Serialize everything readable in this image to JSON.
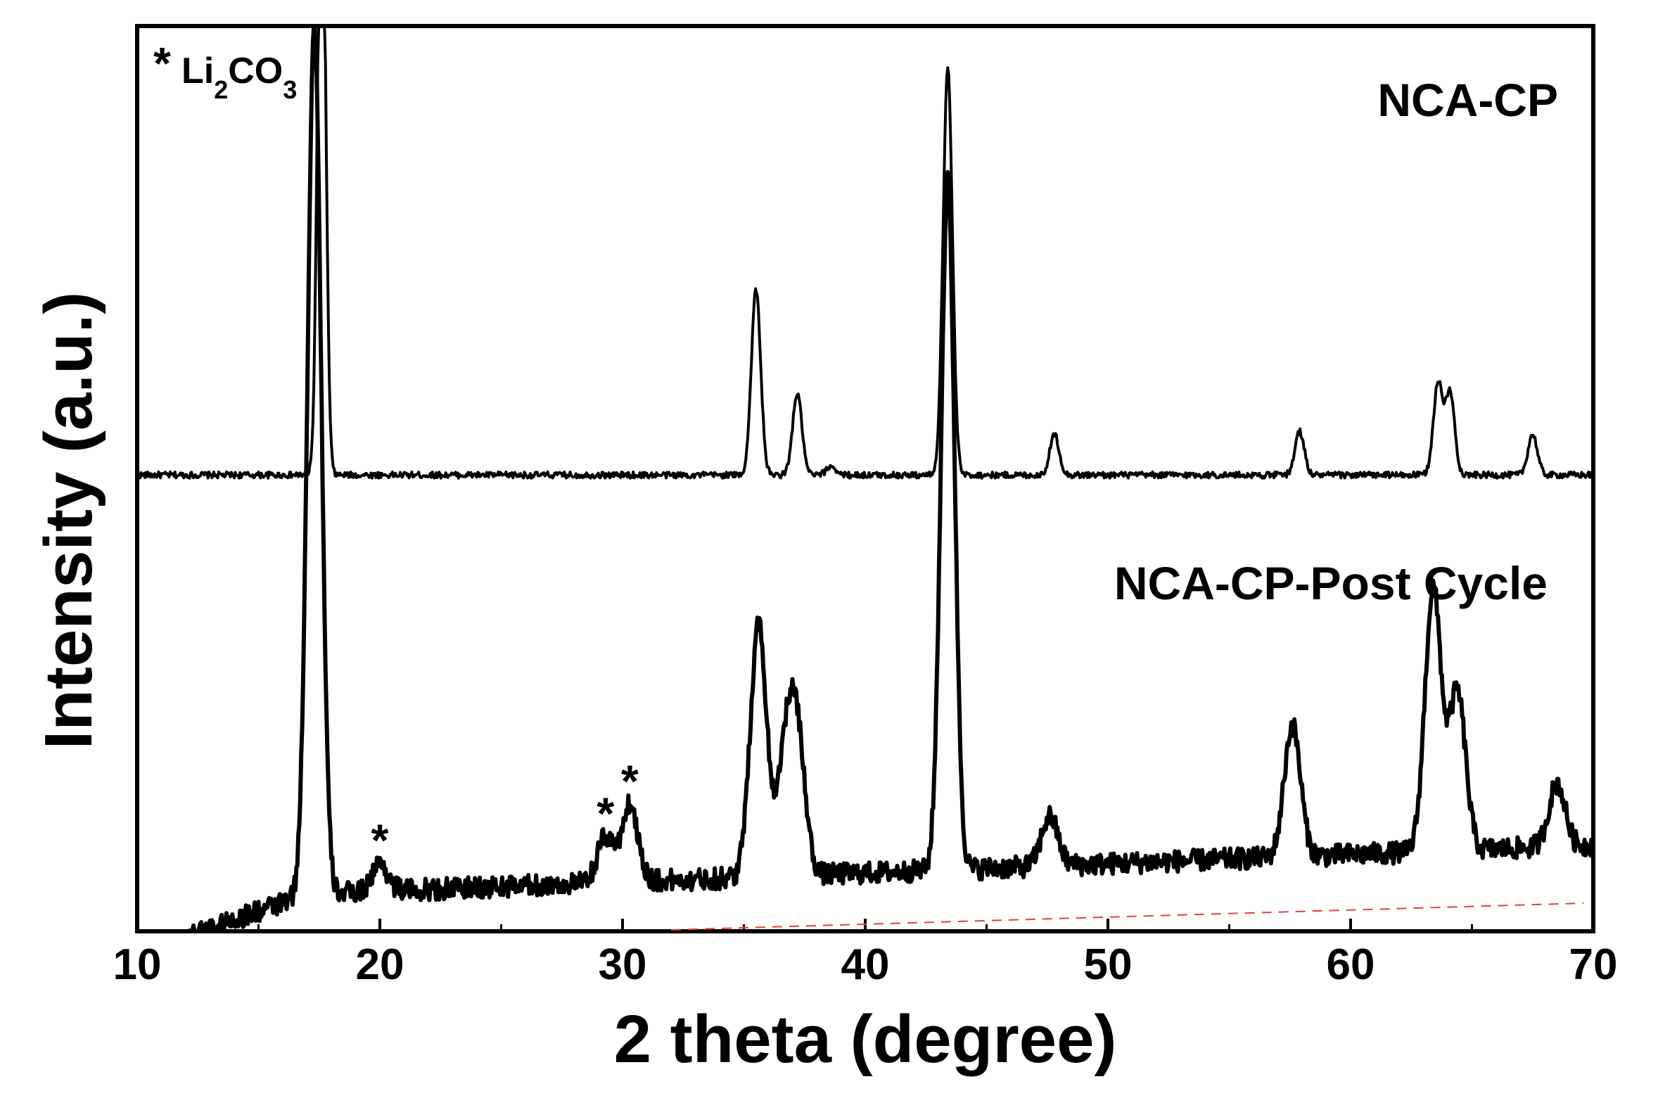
{
  "chart_data": {
    "type": "line",
    "xlabel": "2 theta (degree)",
    "ylabel": "Intensity (a.u.)",
    "xlim": [
      10,
      70
    ],
    "ylim": [
      0,
      100
    ],
    "x_ticks": [
      10,
      20,
      30,
      40,
      50,
      60,
      70
    ],
    "y_ticks_shown": false,
    "grid": false,
    "legend": {
      "marker": "*",
      "text": "Li",
      "sub1": "2",
      "text2": "CO",
      "sub2": "3",
      "placement": "top-left"
    },
    "series": [
      {
        "name": "NCA-CP",
        "color": "#000000",
        "baseline": 50.4,
        "peaks": [
          {
            "x": 17.6,
            "h": 75.5
          },
          {
            "x": 35.5,
            "h": 20.5
          },
          {
            "x": 37.2,
            "h": 9.0
          },
          {
            "x": 38.6,
            "h": 1.0
          },
          {
            "x": 43.4,
            "h": 45.0
          },
          {
            "x": 47.8,
            "h": 4.5
          },
          {
            "x": 57.9,
            "h": 4.8
          },
          {
            "x": 63.6,
            "h": 10.0
          },
          {
            "x": 64.1,
            "h": 9.0
          },
          {
            "x": 67.5,
            "h": 4.5
          }
        ]
      },
      {
        "name": "NCA-CP-Post Cycle",
        "color": "#000000",
        "baseline": 4.0,
        "peaks": [
          {
            "x": 17.3,
            "h": 96.0
          },
          {
            "x": 20.0,
            "h": 3.0
          },
          {
            "x": 29.3,
            "h": 5.0
          },
          {
            "x": 30.3,
            "h": 8.5
          },
          {
            "x": 35.6,
            "h": 28.0
          },
          {
            "x": 36.7,
            "h": 12.5
          },
          {
            "x": 37.2,
            "h": 14.5
          },
          {
            "x": 43.4,
            "h": 76.0
          },
          {
            "x": 47.6,
            "h": 5.5
          },
          {
            "x": 57.6,
            "h": 14.5
          },
          {
            "x": 63.4,
            "h": 29.0
          },
          {
            "x": 64.4,
            "h": 17.5
          },
          {
            "x": 68.5,
            "h": 7.0
          }
        ]
      }
    ],
    "li2co3_markers_x": [
      20.0,
      29.3,
      30.3
    ]
  }
}
